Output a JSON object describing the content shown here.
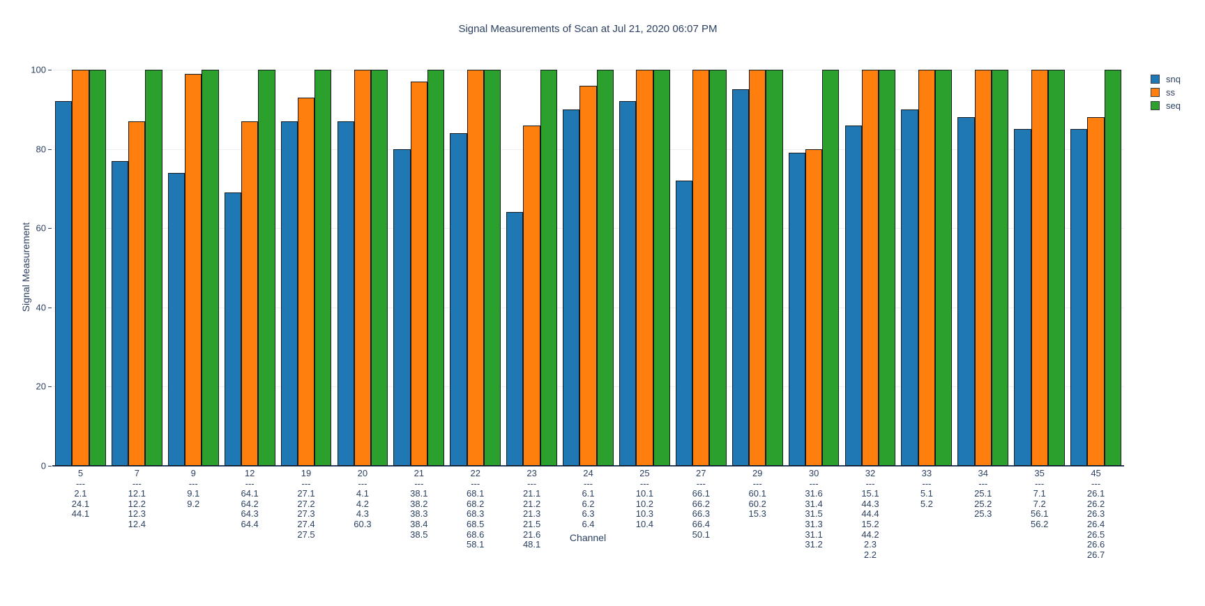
{
  "title": "Signal Measurements of Scan at Jul 21, 2020 06:07 PM",
  "colors": {
    "snq": "#1f77b4",
    "ss": "#ff7f0e",
    "seq": "#2ca02c",
    "bar_border": "#14191e",
    "text": "#2a3f5f",
    "grid": "#ebeef2",
    "axis_line": "#2a3f5f",
    "background": "#ffffff"
  },
  "legend": {
    "items": [
      "snq",
      "ss",
      "seq"
    ]
  },
  "chart_data": {
    "type": "bar",
    "title": "Signal Measurements of Scan at Jul 21, 2020 06:07 PM",
    "xlabel": "Channel",
    "ylabel": "Signal Measurement",
    "ylim": [
      0,
      100
    ],
    "yticks": [
      0,
      20,
      40,
      60,
      80,
      100
    ],
    "grid": true,
    "legend_position": "top-right",
    "categories": [
      "5",
      "7",
      "9",
      "12",
      "19",
      "20",
      "21",
      "22",
      "23",
      "24",
      "25",
      "27",
      "29",
      "30",
      "32",
      "33",
      "34",
      "35",
      "45"
    ],
    "category_sublabels": [
      [
        "---",
        "2.1",
        "24.1",
        "44.1"
      ],
      [
        "---",
        "12.1",
        "12.2",
        "12.3",
        "12.4"
      ],
      [
        "---",
        "9.1",
        "9.2"
      ],
      [
        "---",
        "64.1",
        "64.2",
        "64.3",
        "64.4"
      ],
      [
        "---",
        "27.1",
        "27.2",
        "27.3",
        "27.4",
        "27.5"
      ],
      [
        "---",
        "4.1",
        "4.2",
        "4.3",
        "60.3"
      ],
      [
        "---",
        "38.1",
        "38.2",
        "38.3",
        "38.4",
        "38.5"
      ],
      [
        "---",
        "68.1",
        "68.2",
        "68.3",
        "68.5",
        "68.6",
        "58.1"
      ],
      [
        "---",
        "21.1",
        "21.2",
        "21.3",
        "21.5",
        "21.6",
        "48.1"
      ],
      [
        "---",
        "6.1",
        "6.2",
        "6.3",
        "6.4"
      ],
      [
        "---",
        "10.1",
        "10.2",
        "10.3",
        "10.4"
      ],
      [
        "---",
        "66.1",
        "66.2",
        "66.3",
        "66.4",
        "50.1"
      ],
      [
        "---",
        "60.1",
        "60.2",
        "15.3"
      ],
      [
        "---",
        "31.6",
        "31.4",
        "31.5",
        "31.3",
        "31.1",
        "31.2"
      ],
      [
        "---",
        "15.1",
        "44.3",
        "44.4",
        "15.2",
        "44.2",
        "2.3",
        "2.2"
      ],
      [
        "---",
        "5.1",
        "5.2"
      ],
      [
        "---",
        "25.1",
        "25.2",
        "25.3"
      ],
      [
        "---",
        "7.1",
        "7.2",
        "56.1",
        "56.2"
      ],
      [
        "---",
        "26.1",
        "26.2",
        "26.3",
        "26.4",
        "26.5",
        "26.6",
        "26.7"
      ]
    ],
    "series": [
      {
        "name": "snq",
        "color": "#1f77b4",
        "values": [
          92,
          77,
          74,
          69,
          87,
          87,
          80,
          84,
          64,
          90,
          92,
          72,
          95,
          79,
          86,
          90,
          88,
          85,
          85
        ]
      },
      {
        "name": "ss",
        "color": "#ff7f0e",
        "values": [
          100,
          87,
          99,
          87,
          93,
          100,
          97,
          100,
          86,
          96,
          100,
          100,
          100,
          80,
          100,
          100,
          100,
          100,
          88
        ]
      },
      {
        "name": "seq",
        "color": "#2ca02c",
        "values": [
          100,
          100,
          100,
          100,
          100,
          100,
          100,
          100,
          100,
          100,
          100,
          100,
          100,
          100,
          100,
          100,
          100,
          100,
          100
        ]
      }
    ]
  }
}
